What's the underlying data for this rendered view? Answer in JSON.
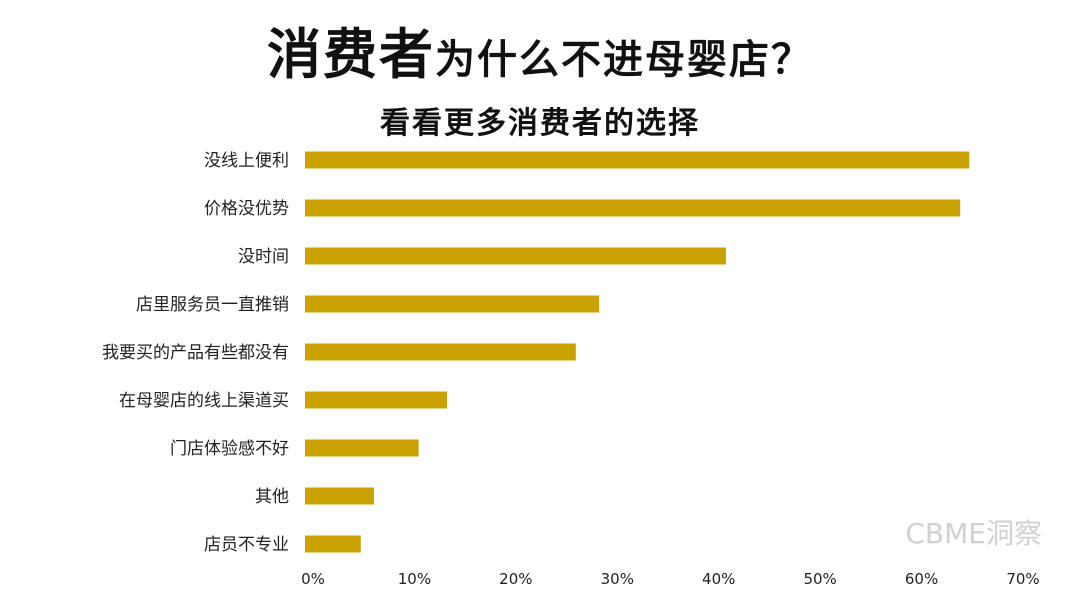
{
  "title_main": "消费者",
  "title_rest": "为什么不进母婴店？",
  "subtitle": "看看更多消费者的选择",
  "watermark": "CBME洞察",
  "chart_data": {
    "type": "bar",
    "orientation": "horizontal",
    "title": "消费者为什么不进母婴店？",
    "subtitle": "看看更多消费者的选择",
    "categories": [
      "没线上便利",
      "价格没优势",
      "没时间",
      "店里服务员一直推销",
      "我要买的产品有些都没有",
      "在母婴店的线上渠道买",
      "门店体验感不好",
      "其他",
      "店员不专业"
    ],
    "values": [
      65.5,
      64.6,
      41.5,
      29.0,
      26.7,
      14.0,
      11.2,
      6.8,
      5.5
    ],
    "xticks": [
      "0%",
      "10%",
      "20%",
      "30%",
      "40%",
      "50%",
      "60%",
      "70%"
    ],
    "xlim": [
      0,
      70
    ],
    "bar_color": "#c9a100",
    "grid": false,
    "legend": "none"
  }
}
